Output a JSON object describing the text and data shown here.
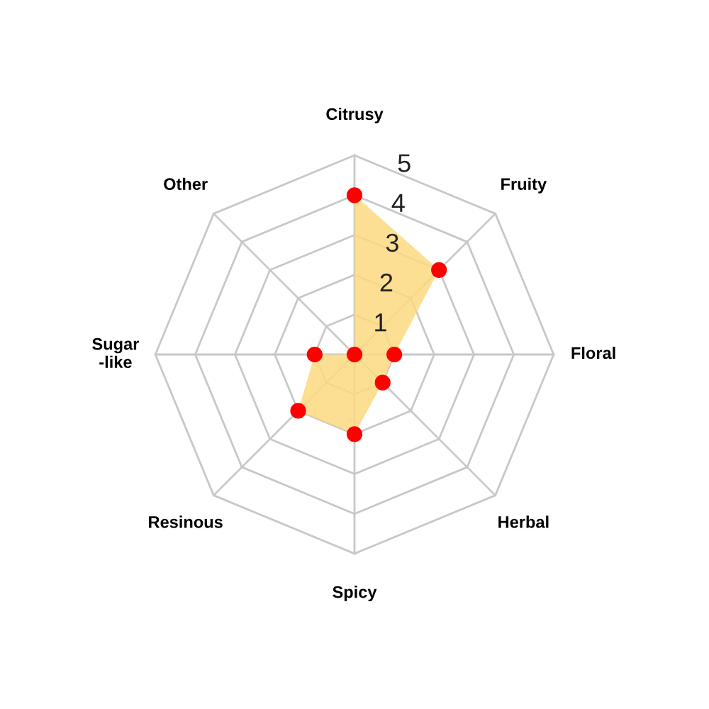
{
  "chart_data": {
    "type": "radar",
    "categories": [
      "Citrusy",
      "Fruity",
      "Floral",
      "Herbal",
      "Spicy",
      "Resinous",
      "Sugar\n-like",
      "Other"
    ],
    "series": [
      {
        "color": "#fcd980",
        "values": [
          4,
          3,
          1,
          1,
          2,
          2,
          1,
          0
        ]
      }
    ],
    "ylim": [
      0,
      5
    ],
    "yticks": [
      1,
      2,
      3,
      4,
      5
    ],
    "grid": true,
    "marker": "circle"
  }
}
